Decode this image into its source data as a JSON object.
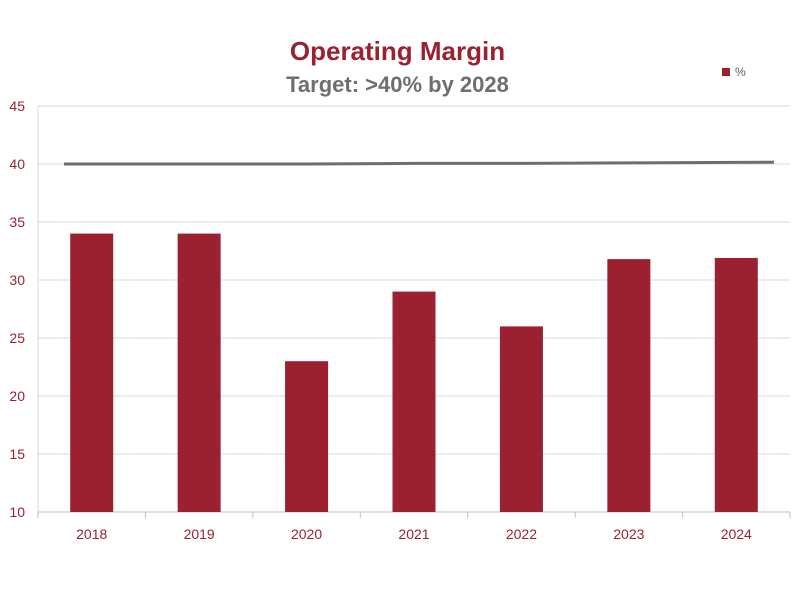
{
  "chart_data": {
    "type": "bar",
    "title": "Operating Margin",
    "subtitle": "Target: >40% by 2028",
    "categories": [
      "2018",
      "2019",
      "2020",
      "2021",
      "2022",
      "2023",
      "2024"
    ],
    "series": [
      {
        "name": "%",
        "values": [
          34,
          34,
          23,
          29,
          26,
          31.8,
          31.9
        ],
        "color": "#9b2030"
      }
    ],
    "target_line": {
      "values": [
        40.0,
        40.0,
        40.0,
        40.05,
        40.05,
        40.1,
        40.15
      ],
      "color": "#6e6e6e"
    },
    "ylim": [
      10,
      45
    ],
    "yticks": [
      "10",
      "15",
      "20",
      "25",
      "30",
      "35",
      "40",
      "45"
    ],
    "grid": true,
    "legend_position": "top-right"
  }
}
